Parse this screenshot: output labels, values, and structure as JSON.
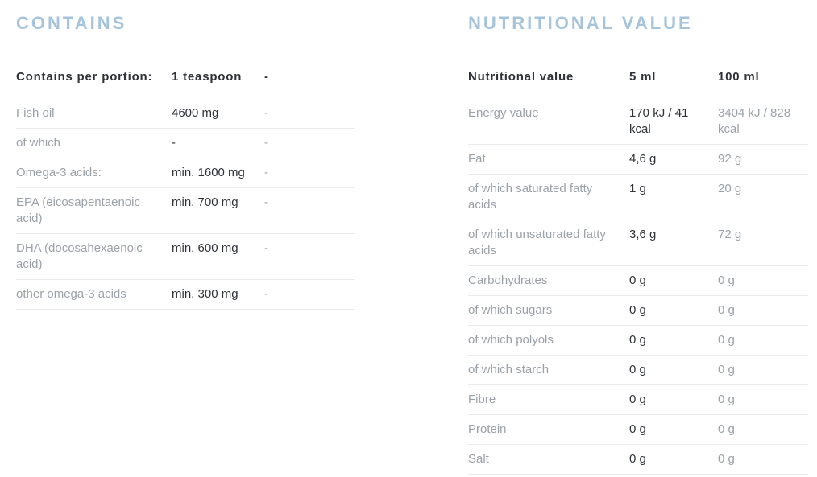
{
  "colors": {
    "heading_blue": "#a5c3da",
    "label_gray": "#9aa2a9",
    "text_dark": "#2f3338",
    "divider": "#e8eaec"
  },
  "contains": {
    "heading": "CONTAINS",
    "table": {
      "columns": [
        "Contains per portion:",
        "1 teaspoon",
        "-"
      ],
      "rows": [
        {
          "label": "Fish oil",
          "value": "4600 mg",
          "value2": "-"
        },
        {
          "label": "of which",
          "value": "-",
          "value2": "-"
        },
        {
          "label": "Omega-3 acids:",
          "value": "min. 1600 mg",
          "value2": "-"
        },
        {
          "label": "EPA (eicosapentaenoic acid)",
          "value": "min. 700 mg",
          "value2": "-"
        },
        {
          "label": "DHA (docosahexaenoic acid)",
          "value": "min. 600 mg",
          "value2": "-"
        },
        {
          "label": "other omega-3 acids",
          "value": "min. 300 mg",
          "value2": "-"
        }
      ]
    }
  },
  "nutrition": {
    "heading": "NUTRITIONAL VALUE",
    "table": {
      "columns": [
        "Nutritional value",
        "5 ml",
        "100 ml"
      ],
      "rows": [
        {
          "label": "Energy value",
          "value": "170 kJ / 41 kcal",
          "value2": "3404 kJ / 828 kcal"
        },
        {
          "label": "Fat",
          "value": "4,6 g",
          "value2": "92 g"
        },
        {
          "label": "of which saturated fatty acids",
          "value": "1 g",
          "value2": "20 g"
        },
        {
          "label": "of which unsaturated fatty acids",
          "value": "3,6 g",
          "value2": "72 g"
        },
        {
          "label": "Carbohydrates",
          "value": "0 g",
          "value2": "0 g"
        },
        {
          "label": "of which sugars",
          "value": "0 g",
          "value2": "0 g"
        },
        {
          "label": "of which polyols",
          "value": "0 g",
          "value2": "0 g"
        },
        {
          "label": "of which starch",
          "value": "0 g",
          "value2": "0 g"
        },
        {
          "label": "Fibre",
          "value": "0 g",
          "value2": "0 g"
        },
        {
          "label": "Protein",
          "value": "0 g",
          "value2": "0 g"
        },
        {
          "label": "Salt",
          "value": "0 g",
          "value2": "0 g"
        }
      ]
    }
  }
}
